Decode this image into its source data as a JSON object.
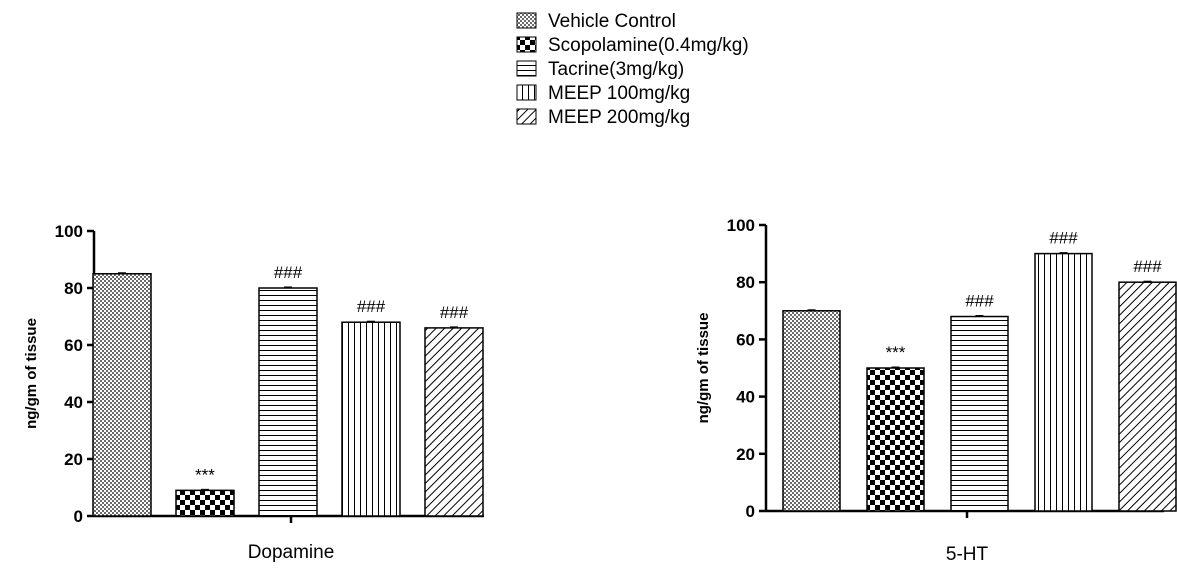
{
  "legend": [
    {
      "label": "Vehicle Control",
      "pattern": "crosshatch"
    },
    {
      "label": "Scopolamine(0.4mg/kg)",
      "pattern": "checker"
    },
    {
      "label": "Tacrine(3mg/kg)",
      "pattern": "horizontal"
    },
    {
      "label": "MEEP 100mg/kg",
      "pattern": "vertical"
    },
    {
      "label": "MEEP 200mg/kg",
      "pattern": "diagonal"
    }
  ],
  "chart_data": [
    {
      "type": "bar",
      "xlabel": "Dopamine",
      "ylabel": "ng/gm of tissue",
      "ylim": [
        0,
        100
      ],
      "yticks": [
        "0",
        "20",
        "40",
        "60",
        "80",
        "100"
      ],
      "grid": false,
      "legend_position": "top-center",
      "categories": [
        "Vehicle Control",
        "Scopolamine(0.4mg/kg)",
        "Tacrine(3mg/kg)",
        "MEEP 100mg/kg",
        "MEEP 200mg/kg"
      ],
      "values": [
        85,
        9,
        80,
        68,
        66
      ],
      "annotations": [
        "",
        "***",
        "###",
        "###",
        "###"
      ]
    },
    {
      "type": "bar",
      "xlabel": "5-HT",
      "ylabel": "ng/gm of tissue",
      "ylim": [
        0,
        100
      ],
      "yticks": [
        "0",
        "20",
        "40",
        "60",
        "80",
        "100"
      ],
      "grid": false,
      "legend_position": "top-center",
      "categories": [
        "Vehicle Control",
        "Scopolamine(0.4mg/kg)",
        "Tacrine(3mg/kg)",
        "MEEP 100mg/kg",
        "MEEP 200mg/kg"
      ],
      "values": [
        70,
        50,
        68,
        90,
        80
      ],
      "annotations": [
        "",
        "***",
        "###",
        "###",
        "###"
      ]
    }
  ]
}
